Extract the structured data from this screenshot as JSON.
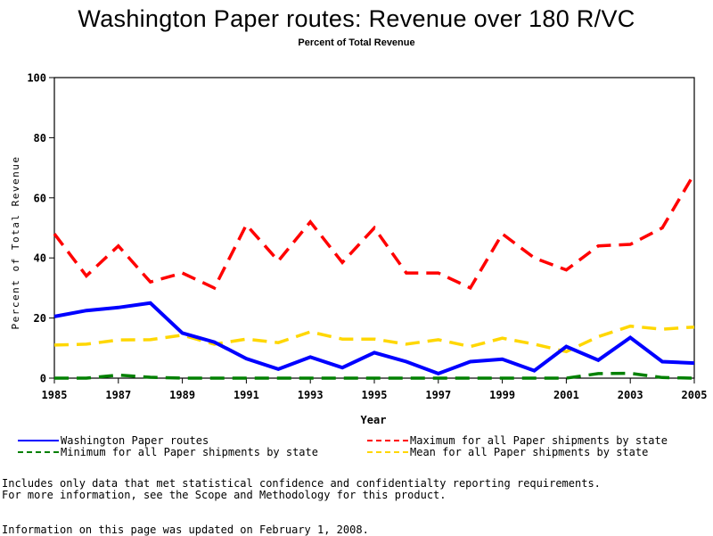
{
  "chart_data": {
    "type": "line",
    "title": "Washington Paper routes: Revenue over 180 R/VC",
    "subtitle": "Percent of Total Revenue",
    "xlabel": "Year",
    "ylabel": "Percent of Total Revenue",
    "xlim": [
      1985,
      2005
    ],
    "ylim": [
      0,
      100
    ],
    "x_ticks": [
      1985,
      1987,
      1989,
      1991,
      1993,
      1995,
      1997,
      1999,
      2001,
      2003,
      2005
    ],
    "y_ticks": [
      0,
      20,
      40,
      60,
      80,
      100
    ],
    "grid": false,
    "legend_position": "bottom",
    "x": [
      1985,
      1986,
      1987,
      1988,
      1989,
      1990,
      1991,
      1992,
      1993,
      1994,
      1995,
      1996,
      1997,
      1998,
      1999,
      2000,
      2001,
      2002,
      2003,
      2004,
      2005
    ],
    "series": [
      {
        "name": "Washington Paper routes",
        "color": "#0000ff",
        "style": "solid",
        "values": [
          20.5,
          22.5,
          23.5,
          25,
          15,
          12,
          6.5,
          3,
          7,
          3.5,
          8.5,
          5.5,
          1.5,
          5.5,
          6.3,
          2.5,
          10.5,
          6,
          13.5,
          5.5,
          5
        ]
      },
      {
        "name": "Maximum for all Paper shipments by state",
        "color": "#ff0000",
        "style": "dashed",
        "values": [
          48,
          34,
          44,
          32,
          35,
          30,
          51,
          39,
          52,
          38.5,
          50,
          35,
          35,
          30,
          48,
          40,
          36,
          44,
          44.5,
          50,
          68
        ]
      },
      {
        "name": "Minimum for all Paper shipments by state",
        "color": "#008000",
        "style": "dashed",
        "values": [
          0,
          0,
          1,
          0.3,
          0,
          0,
          0,
          0,
          0,
          0,
          0,
          0,
          0,
          0,
          0,
          0,
          0,
          1.5,
          1.6,
          0.2,
          0
        ]
      },
      {
        "name": "Mean for all Paper shipments by state",
        "color": "#ffd700",
        "style": "dashed",
        "values": [
          11,
          11.3,
          12.7,
          12.8,
          14.3,
          11.3,
          13,
          11.8,
          15.4,
          13,
          13,
          11.3,
          12.8,
          10.5,
          13.3,
          11.3,
          8.8,
          13.8,
          17.3,
          16.3,
          17
        ]
      }
    ]
  },
  "legend": [
    {
      "label": "Washington Paper routes",
      "color": "#0000ff",
      "style": "solid"
    },
    {
      "label": "Maximum for all Paper shipments by state",
      "color": "#ff0000",
      "style": "dashed"
    },
    {
      "label": "Minimum for all Paper shipments by state",
      "color": "#008000",
      "style": "dashed"
    },
    {
      "label": "Mean for all Paper shipments by state",
      "color": "#ffd700",
      "style": "dashed"
    }
  ],
  "notes": {
    "line1": "Includes only data that met statistical confidence and confidentialty reporting requirements.",
    "line2": "For more information, see the Scope and Methodology for this product.",
    "updated": "Information on this page was updated on February 1, 2008."
  }
}
